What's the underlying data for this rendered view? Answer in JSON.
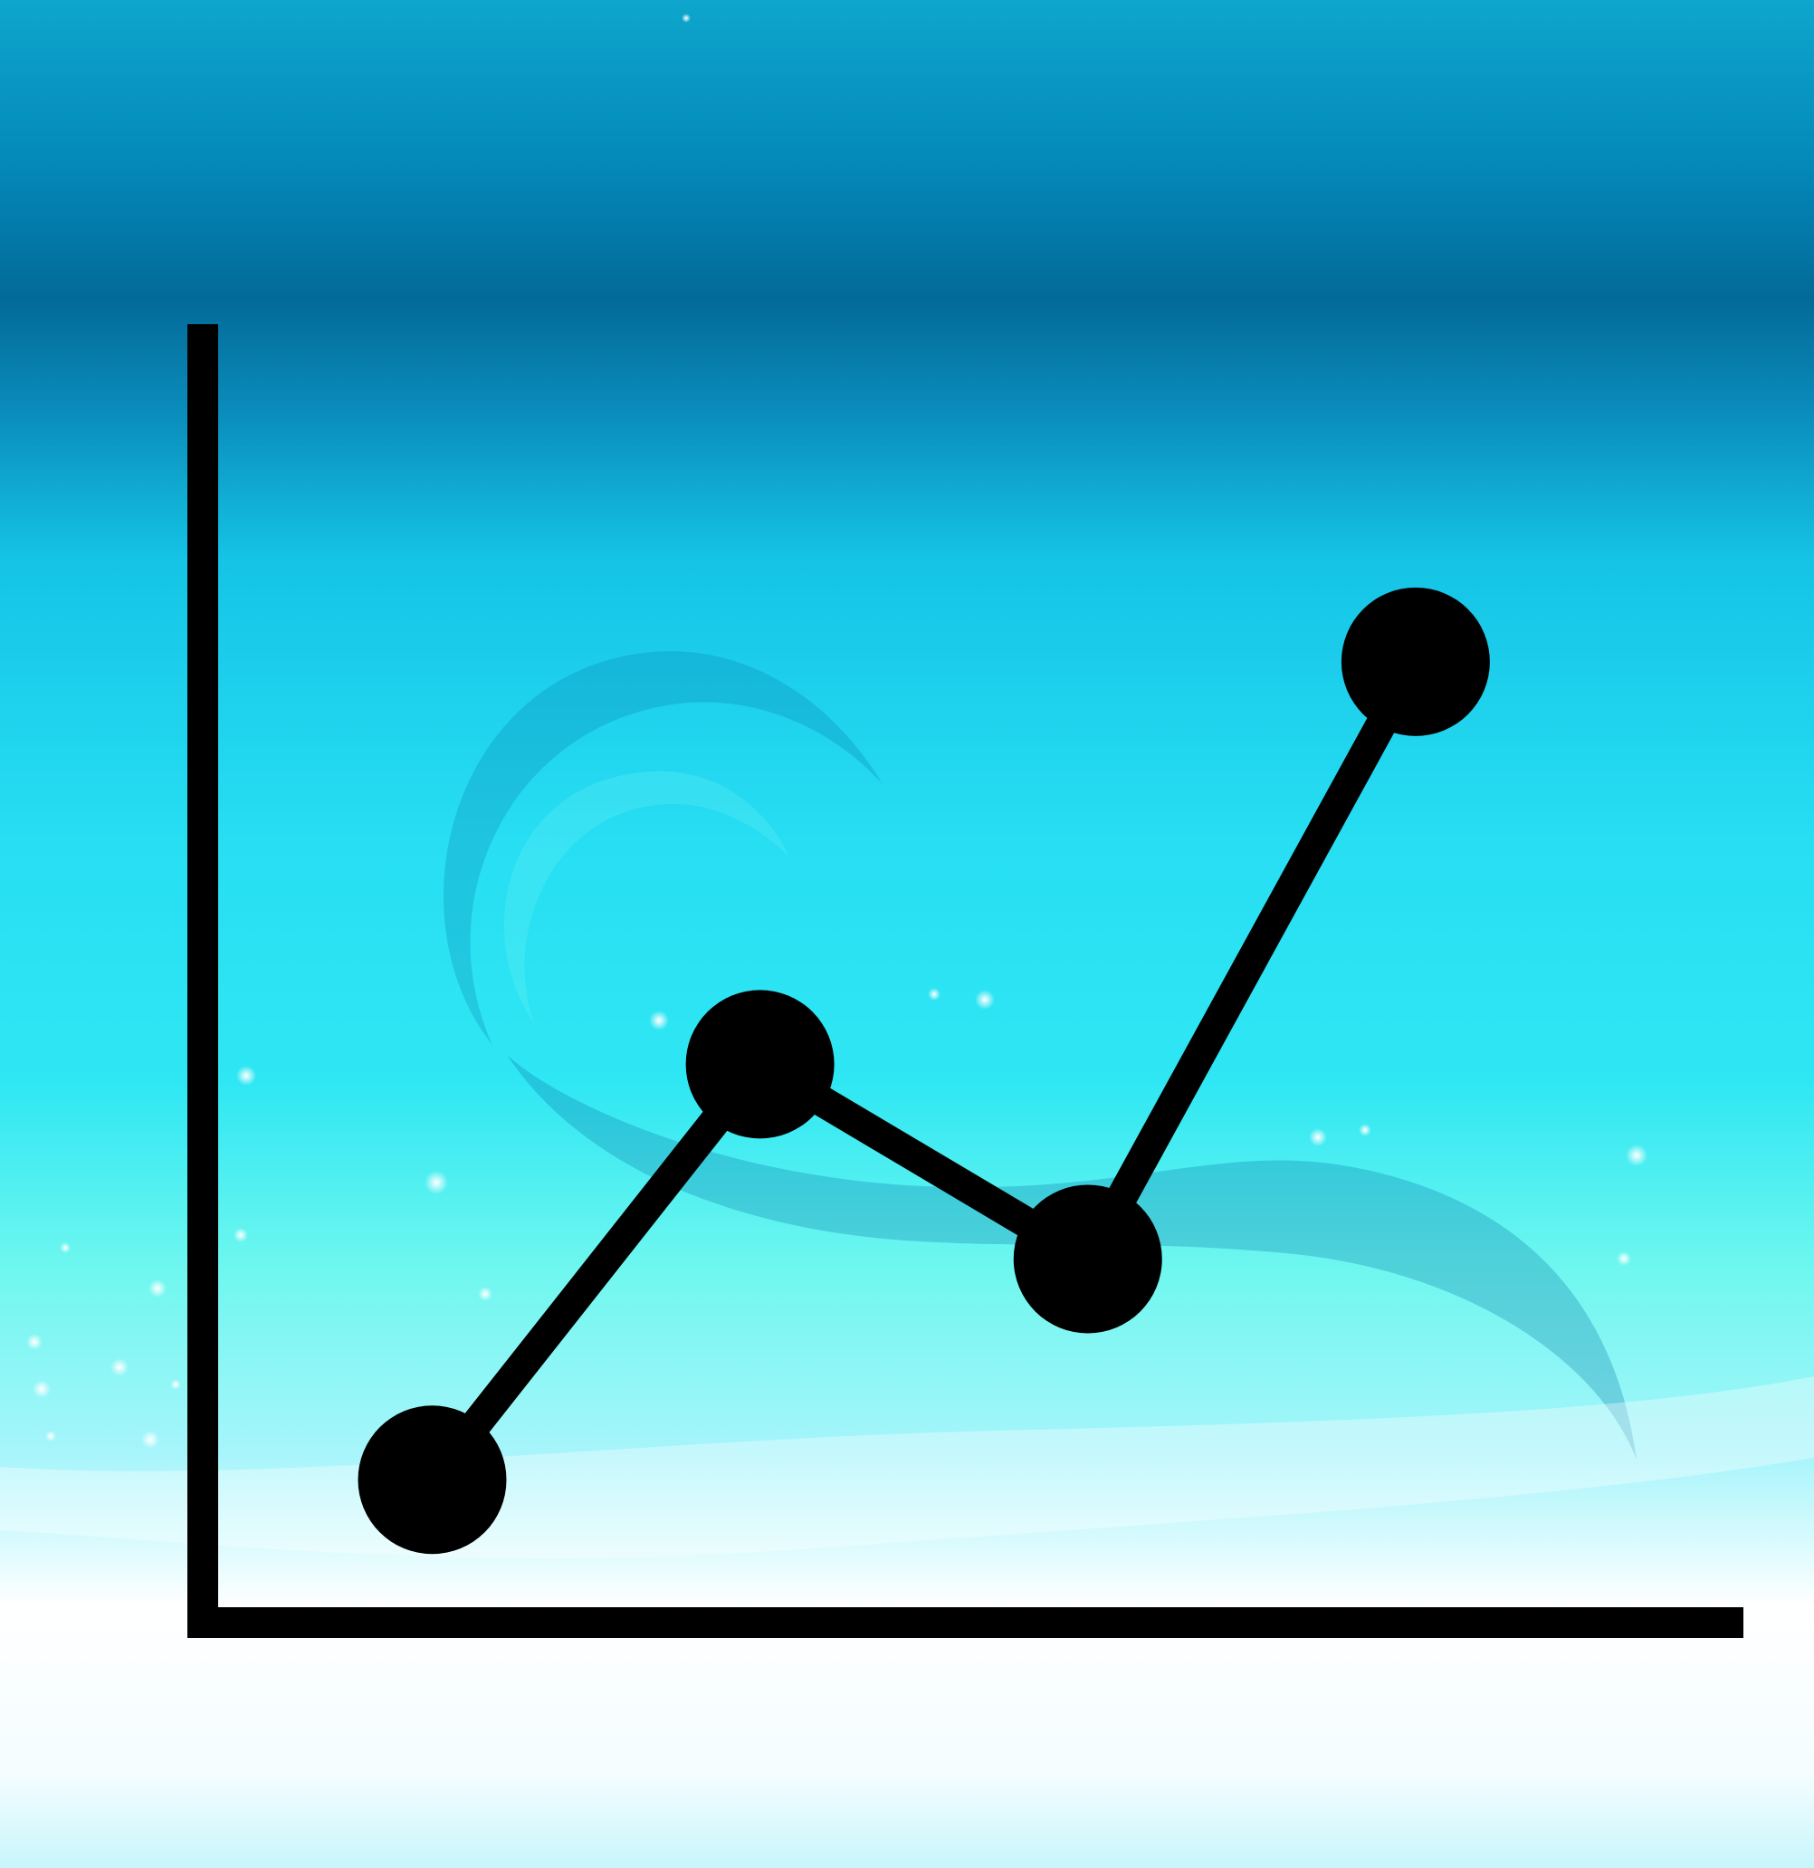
{
  "colors": {
    "bg_top": "#0e9ac4",
    "bg_band": "#036a98",
    "bg_mid": "#25d6ee",
    "bg_lower": "#6ff3ef",
    "bg_bottom": "#ffffff",
    "mark": "#000000"
  },
  "chart_data": {
    "type": "line",
    "title": "",
    "xlabel": "",
    "ylabel": "",
    "x": [
      1,
      2,
      3,
      4
    ],
    "xlim": [
      0.3,
      5
    ],
    "ylim": [
      0,
      1
    ],
    "grid": false,
    "legend": "none",
    "series": [
      {
        "values": [
          0.11,
          0.43,
          0.28,
          0.74
        ]
      }
    ]
  }
}
